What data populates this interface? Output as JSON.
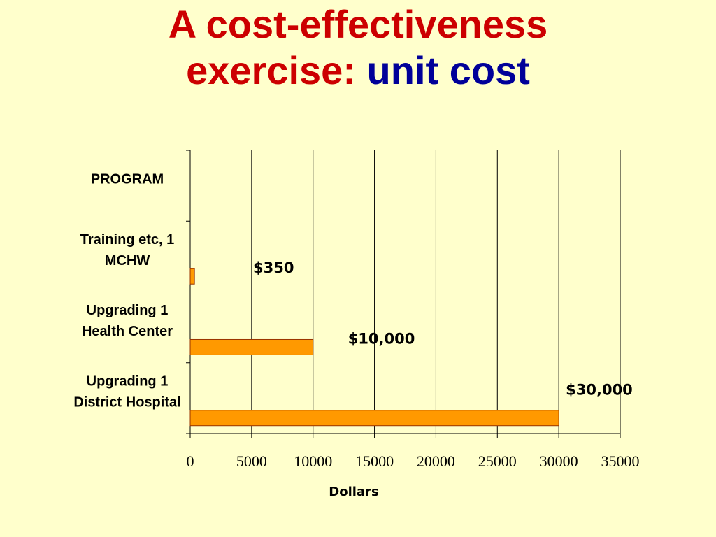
{
  "slide": {
    "title_line1": "A cost-effectiveness",
    "title_line2_red": "exercise:",
    "title_line2_blue": "unit cost",
    "colors": {
      "background": "#FFFFCC",
      "title_red": "#CC0000",
      "title_blue": "#000099"
    }
  },
  "chart_data": {
    "type": "bar",
    "orientation": "horizontal",
    "categories": [
      [
        "PROGRAM"
      ],
      [
        "Training etc, 1",
        "MCHW"
      ],
      [
        "Upgrading 1",
        "Health Center"
      ],
      [
        "Upgrading 1",
        "District Hospital"
      ]
    ],
    "values": [
      null,
      350,
      10000,
      30000
    ],
    "data_labels": [
      "",
      "$350",
      "$10,000",
      "$30,000"
    ],
    "xlabel": "Dollars",
    "ylabel": "",
    "xlim": [
      0,
      35000
    ],
    "xticks": [
      0,
      5000,
      10000,
      15000,
      20000,
      25000,
      30000,
      35000
    ],
    "xtick_labels": [
      "0",
      "5000",
      "10000",
      "15000",
      "20000",
      "25000",
      "30000",
      "35000"
    ],
    "grid": "vertical",
    "legend": "none",
    "colors": {
      "bar_fill": "#FF9900",
      "bar_stroke": "#993300",
      "axis": "#000000",
      "grid": "#000000"
    }
  }
}
